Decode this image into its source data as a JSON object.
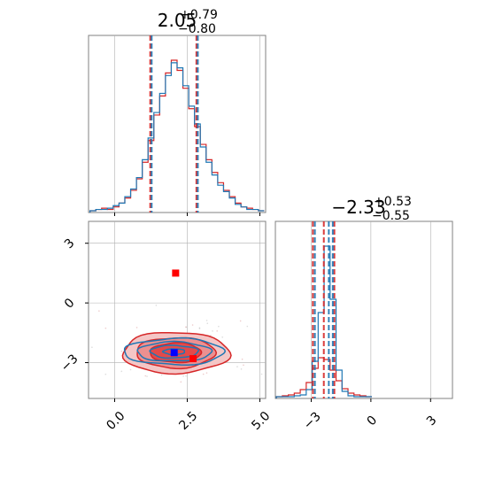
{
  "colors": {
    "red": "#d62728",
    "red_fill_outer": "#f4c6c6",
    "red_fill_mid": "#ec9090",
    "red_fill_inner": "#e34a4a",
    "blue": "#1f77b4",
    "marker_red": "#ff0000",
    "marker_blue": "#0000ff",
    "grid": "#b0b0b0",
    "axes": "#808080"
  },
  "chart_data": [
    {
      "panel": "top-left",
      "type": "histogram",
      "title": {
        "base": "2.05",
        "plus": "+0.79",
        "minus": "−0.80"
      },
      "xlim": [
        -0.9,
        5.2
      ],
      "grid_x": [
        0.0,
        2.5,
        5.0
      ],
      "quantile_lines": {
        "red": [
          1.25,
          2.84
        ],
        "blue": [
          1.25,
          2.84
        ]
      },
      "series": [
        {
          "name": "",
          "color": "red",
          "bin_centers": [
            -0.75,
            -0.55,
            -0.35,
            -0.15,
            0.05,
            0.25,
            0.45,
            0.65,
            0.85,
            1.05,
            1.25,
            1.45,
            1.65,
            1.85,
            2.05,
            2.25,
            2.45,
            2.65,
            2.85,
            3.05,
            3.25,
            3.45,
            3.65,
            3.85,
            4.05,
            4.25,
            4.45,
            4.65,
            4.85,
            5.05
          ],
          "counts": [
            0,
            1,
            2,
            1,
            3,
            6,
            10,
            16,
            25,
            38,
            55,
            75,
            90,
            108,
            118,
            110,
            96,
            80,
            66,
            52,
            40,
            30,
            22,
            16,
            11,
            6,
            3,
            2,
            1,
            0
          ]
        },
        {
          "name": "",
          "color": "blue",
          "bin_centers": [
            -0.75,
            -0.55,
            -0.35,
            -0.15,
            0.05,
            0.25,
            0.45,
            0.65,
            0.85,
            1.05,
            1.25,
            1.45,
            1.65,
            1.85,
            2.05,
            2.25,
            2.45,
            2.65,
            2.85,
            3.05,
            3.25,
            3.45,
            3.65,
            3.85,
            4.05,
            4.25,
            4.45,
            4.65,
            4.85,
            5.05
          ],
          "counts": [
            0,
            1,
            1,
            2,
            4,
            6,
            11,
            17,
            26,
            40,
            57,
            77,
            92,
            106,
            116,
            112,
            98,
            82,
            68,
            50,
            38,
            28,
            20,
            15,
            10,
            5,
            3,
            1,
            1,
            0
          ]
        }
      ]
    },
    {
      "panel": "bottom-left",
      "type": "contour",
      "xlim": [
        -0.9,
        5.2
      ],
      "ylim": [
        -4.8,
        4.1
      ],
      "x_ticks": [
        "0.0",
        "2.5",
        "5.0"
      ],
      "x_tick_values": [
        0.0,
        2.5,
        5.0
      ],
      "y_ticks": [
        "−3",
        "0",
        "3"
      ],
      "y_tick_values": [
        -3,
        0,
        3
      ],
      "red_contour": {
        "center": [
          2.1,
          -2.5
        ],
        "sigma": [
          0.8,
          0.45
        ]
      },
      "blue_contour": {
        "center": [
          2.05,
          -2.45
        ],
        "sigma": [
          0.75,
          0.22
        ]
      },
      "markers": [
        {
          "color": "marker_red",
          "x": 2.1,
          "y": 1.5
        },
        {
          "color": "marker_red",
          "x": 2.7,
          "y": -2.8
        },
        {
          "color": "marker_blue",
          "x": 2.05,
          "y": -2.5
        }
      ]
    },
    {
      "panel": "bottom-right",
      "type": "histogram",
      "title": {
        "base": "−2.33",
        "plus": "+0.53",
        "minus": "−0.55"
      },
      "xlim": [
        -4.8,
        4.1
      ],
      "x_ticks": [
        "−3",
        "0",
        "3"
      ],
      "x_tick_values": [
        -3,
        0,
        3
      ],
      "quantile_lines": {
        "red": [
          -2.88,
          -2.33,
          -1.8
        ],
        "blue": [
          -2.85,
          -2.15,
          -1.95
        ]
      },
      "series": [
        {
          "name": "",
          "color": "red",
          "bin_centers": [
            -4.6,
            -4.3,
            -4.0,
            -3.7,
            -3.4,
            -3.1,
            -2.8,
            -2.5,
            -2.2,
            -1.9,
            -1.6,
            -1.3,
            -1.0,
            -0.7,
            -0.4,
            -0.1
          ],
          "counts": [
            0,
            1,
            2,
            4,
            8,
            16,
            32,
            44,
            42,
            30,
            18,
            9,
            4,
            2,
            1,
            0
          ]
        },
        {
          "name": "",
          "color": "blue",
          "bin_centers": [
            -4.6,
            -4.3,
            -4.0,
            -3.7,
            -3.4,
            -3.1,
            -2.8,
            -2.5,
            -2.2,
            -1.9,
            -1.6,
            -1.3,
            -1.0,
            -0.7,
            -0.4,
            -0.1
          ],
          "counts": [
            0,
            0,
            0,
            1,
            2,
            8,
            40,
            95,
            170,
            110,
            30,
            6,
            1,
            0,
            0,
            0
          ]
        }
      ]
    }
  ]
}
